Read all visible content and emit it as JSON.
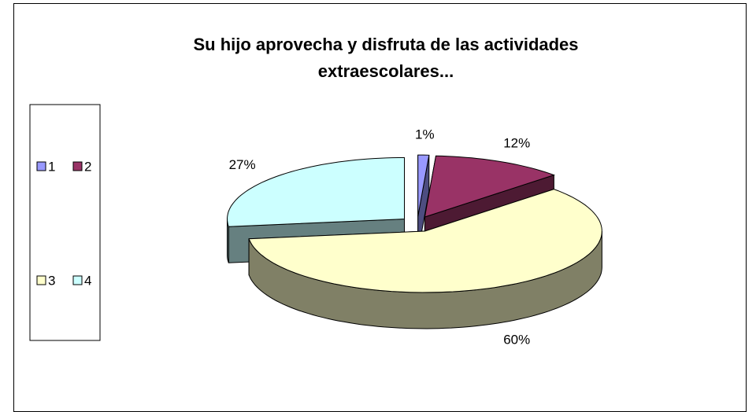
{
  "chart_data": {
    "type": "pie",
    "title": "Su hijo aprovecha y disfruta de las actividades extraescolares...",
    "categories": [
      "1",
      "2",
      "3",
      "4"
    ],
    "values": [
      1,
      12,
      60,
      27
    ],
    "value_labels": [
      "1%",
      "12%",
      "60%",
      "27%"
    ],
    "colors": [
      "#9999ff",
      "#993366",
      "#ffffcc",
      "#ccffff"
    ],
    "legend": "left"
  }
}
